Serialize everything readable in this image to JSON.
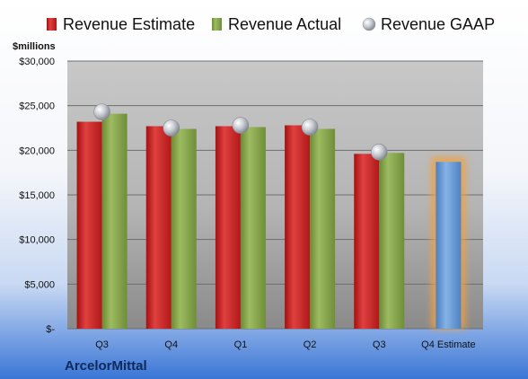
{
  "chart_data": {
    "type": "bar",
    "categories": [
      "Q3",
      "Q4",
      "Q1",
      "Q2",
      "Q3",
      "Q4 Estimate"
    ],
    "series": [
      {
        "name": "Revenue Estimate",
        "kind": "bar",
        "color": "#d42a2a",
        "values": [
          23200,
          22700,
          22700,
          22800,
          19600,
          null
        ]
      },
      {
        "name": "Revenue Actual",
        "kind": "bar",
        "color": "#8aab4e",
        "values": [
          24100,
          22400,
          22600,
          22400,
          19700,
          null
        ]
      },
      {
        "name": "Revenue GAAP",
        "kind": "marker",
        "color": "#b9bcc4",
        "values": [
          24300,
          22500,
          22800,
          22600,
          19800,
          null
        ]
      },
      {
        "name": "",
        "kind": "highlight-bar",
        "color": "#6fa0d8",
        "values": [
          null,
          null,
          null,
          null,
          null,
          18700
        ]
      }
    ],
    "ylabel": "$millions",
    "ylim": [
      0,
      30000
    ],
    "yticks": [
      0,
      5000,
      10000,
      15000,
      20000,
      25000,
      30000
    ],
    "ytick_labels": [
      "$-",
      "$5,000",
      "$10,000",
      "$15,000",
      "$20,000",
      "$25,000",
      "$30,000"
    ],
    "grid": true,
    "legend_position": "top",
    "footer_label": "ArcelorMittal"
  }
}
